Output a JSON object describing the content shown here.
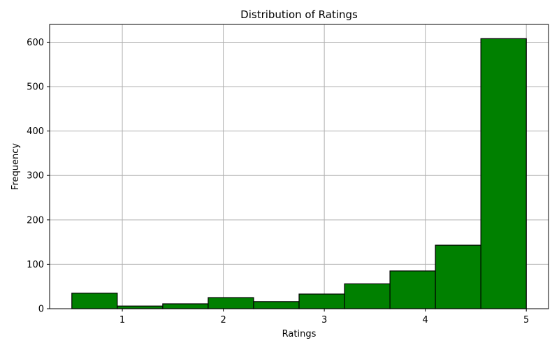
{
  "chart_data": {
    "type": "bar",
    "title": "Distribution of Ratings",
    "xlabel": "Ratings",
    "ylabel": "Frequency",
    "bins": [
      {
        "start": 0.5,
        "end": 0.95,
        "value": 35
      },
      {
        "start": 0.95,
        "end": 1.4,
        "value": 6
      },
      {
        "start": 1.4,
        "end": 1.85,
        "value": 11
      },
      {
        "start": 1.85,
        "end": 2.3,
        "value": 25
      },
      {
        "start": 2.3,
        "end": 2.75,
        "value": 16
      },
      {
        "start": 2.75,
        "end": 3.2,
        "value": 33
      },
      {
        "start": 3.2,
        "end": 3.65,
        "value": 56
      },
      {
        "start": 3.65,
        "end": 4.1,
        "value": 85
      },
      {
        "start": 4.1,
        "end": 4.55,
        "value": 143
      },
      {
        "start": 4.55,
        "end": 5.0,
        "value": 608
      }
    ],
    "xticks": [
      1,
      2,
      3,
      4,
      5
    ],
    "yticks": [
      0,
      100,
      200,
      300,
      400,
      500,
      600
    ],
    "xlim": [
      0.28,
      5.22
    ],
    "ylim": [
      0,
      640
    ],
    "grid": true,
    "colors": {
      "bar_fill": "#008000",
      "bar_edge": "#000000",
      "grid": "#b0b0b0"
    }
  }
}
